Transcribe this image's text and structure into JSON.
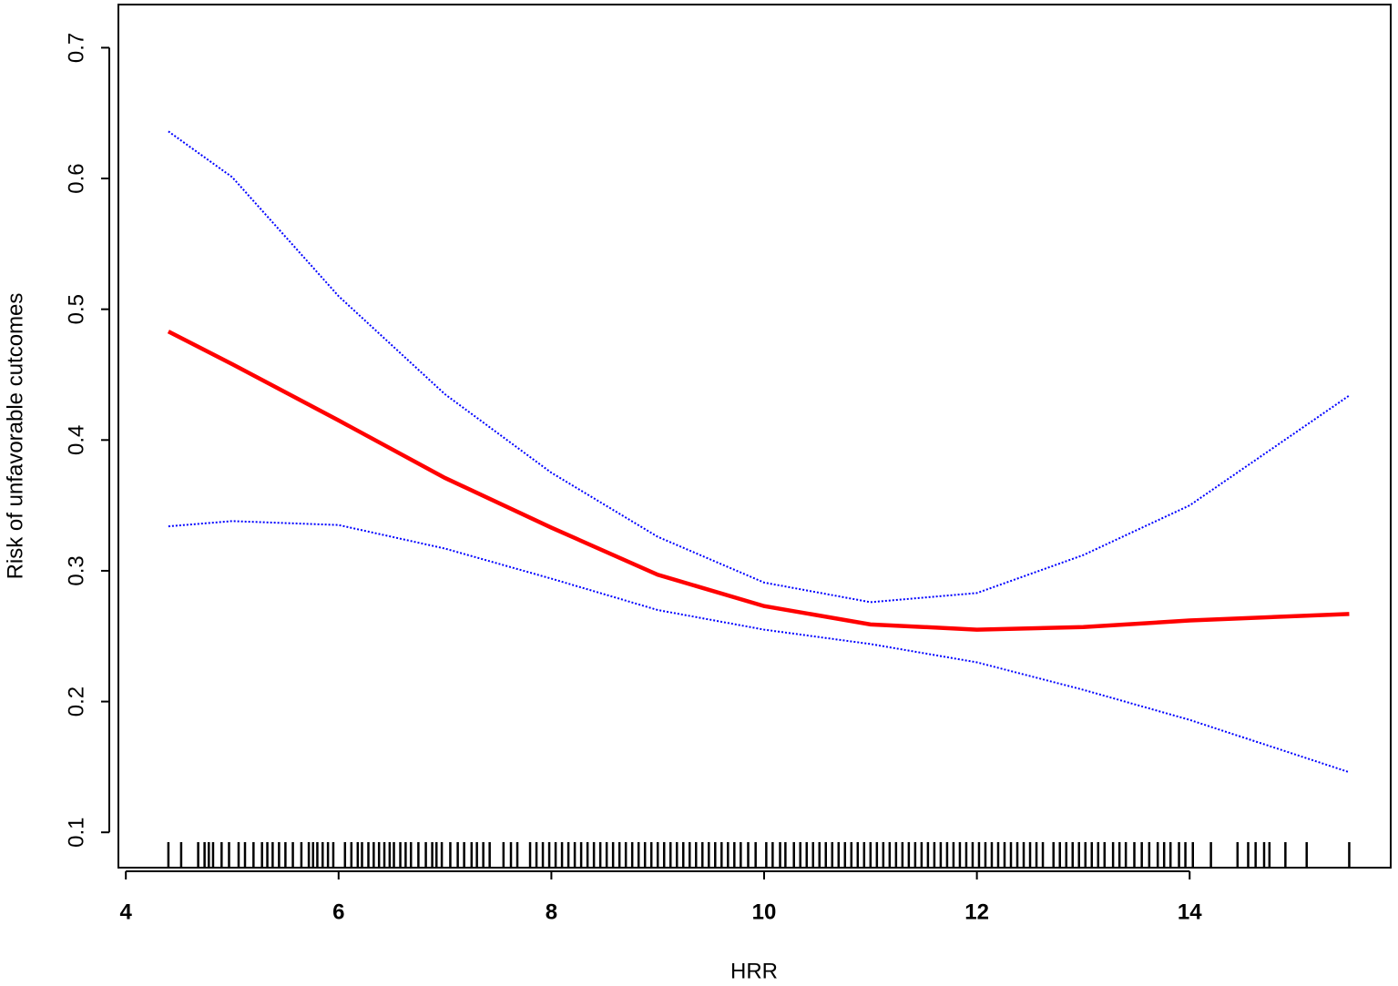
{
  "chart_data": {
    "type": "line",
    "xlabel": "HRR",
    "ylabel": "Risk of unfavorable cutcomes",
    "x": [
      4.4,
      5,
      6,
      7,
      8,
      9,
      10,
      11,
      12,
      13,
      14,
      15.5
    ],
    "series": [
      {
        "color": "#ff0000",
        "style": "solid",
        "values": [
          0.483,
          0.458,
          0.415,
          0.371,
          0.333,
          0.297,
          0.273,
          0.259,
          0.255,
          0.257,
          0.262,
          0.267
        ]
      },
      {
        "color": "#0000ff",
        "style": "dotted",
        "values": [
          0.636,
          0.601,
          0.51,
          0.435,
          0.375,
          0.326,
          0.291,
          0.276,
          0.283,
          0.312,
          0.35,
          0.434
        ]
      },
      {
        "color": "#0000ff",
        "style": "dotted",
        "values": [
          0.334,
          0.338,
          0.335,
          0.317,
          0.294,
          0.27,
          0.255,
          0.244,
          0.23,
          0.209,
          0.186,
          0.146
        ]
      }
    ],
    "rug": [
      4.4,
      4.52,
      4.68,
      4.74,
      4.78,
      4.82,
      4.9,
      4.97,
      5.06,
      5.12,
      5.2,
      5.28,
      5.33,
      5.38,
      5.44,
      5.5,
      5.57,
      5.65,
      5.72,
      5.76,
      5.8,
      5.85,
      5.9,
      5.95,
      6.06,
      6.12,
      6.18,
      6.22,
      6.28,
      6.33,
      6.38,
      6.43,
      6.48,
      6.52,
      6.58,
      6.63,
      6.68,
      6.75,
      6.82,
      6.88,
      6.92,
      6.97,
      7.05,
      7.12,
      7.18,
      7.25,
      7.3,
      7.36,
      7.42,
      7.55,
      7.62,
      7.68,
      7.8,
      7.86,
      7.92,
      7.98,
      8.04,
      8.1,
      8.16,
      8.22,
      8.28,
      8.34,
      8.4,
      8.46,
      8.52,
      8.58,
      8.64,
      8.7,
      8.76,
      8.82,
      8.88,
      8.94,
      9.0,
      9.06,
      9.12,
      9.18,
      9.24,
      9.3,
      9.36,
      9.42,
      9.48,
      9.54,
      9.6,
      9.66,
      9.72,
      9.78,
      9.85,
      9.92,
      10.02,
      10.08,
      10.15,
      10.2,
      10.28,
      10.34,
      10.4,
      10.46,
      10.52,
      10.58,
      10.64,
      10.7,
      10.76,
      10.82,
      10.88,
      10.94,
      11.0,
      11.06,
      11.12,
      11.18,
      11.24,
      11.3,
      11.36,
      11.42,
      11.48,
      11.54,
      11.6,
      11.66,
      11.72,
      11.78,
      11.84,
      11.9,
      11.96,
      12.02,
      12.08,
      12.14,
      12.2,
      12.26,
      12.32,
      12.38,
      12.44,
      12.5,
      12.56,
      12.62,
      12.72,
      12.78,
      12.84,
      12.9,
      12.96,
      13.02,
      13.08,
      13.14,
      13.2,
      13.28,
      13.34,
      13.4,
      13.48,
      13.55,
      13.62,
      13.7,
      13.76,
      13.82,
      13.9,
      13.96,
      14.03,
      14.2,
      14.45,
      14.55,
      14.62,
      14.7,
      14.75,
      14.9,
      15.1,
      15.5
    ],
    "xlim": [
      3.93,
      15.89
    ],
    "ylim": [
      0.073,
      0.733
    ],
    "xticks": [
      4,
      6,
      8,
      10,
      12,
      14
    ],
    "yticks": [
      0.1,
      0.2,
      0.3,
      0.4,
      0.5,
      0.6,
      0.7
    ]
  }
}
